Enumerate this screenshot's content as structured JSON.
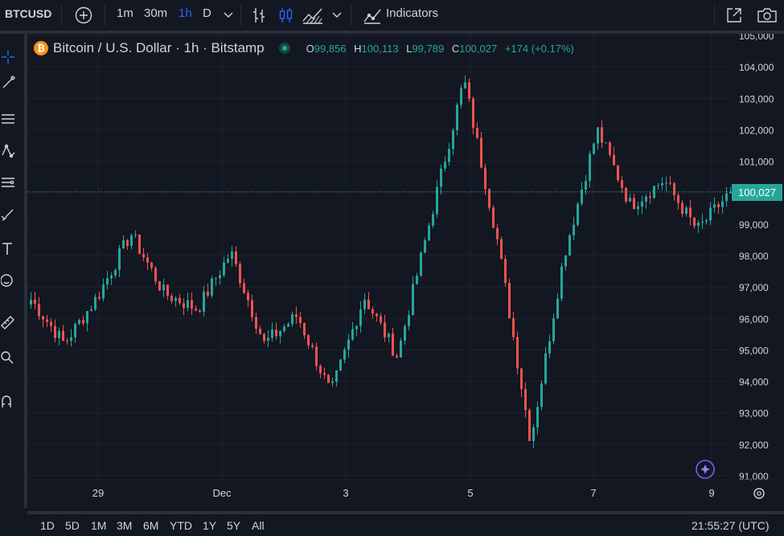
{
  "toolbar": {
    "symbol": "BTCUSD",
    "intervals": [
      "1m",
      "30m",
      "1h",
      "D"
    ],
    "active_interval": "1h",
    "indicators_label": "Indicators"
  },
  "legend": {
    "title": "Bitcoin / U.S. Dollar · 1h · Bitstamp",
    "coin_glyph": "₿",
    "open_label": "O",
    "open": "99,856",
    "high_label": "H",
    "high": "100,113",
    "low_label": "L",
    "low": "99,789",
    "close_label": "C",
    "close": "100,027",
    "change": "+174 (+0.17%)"
  },
  "price_axis": {
    "ticks": [
      "105,000",
      "104,000",
      "103,000",
      "102,000",
      "101,000",
      "100,000",
      "99,000",
      "98,000",
      "97,000",
      "96,000",
      "95,000",
      "94,000",
      "93,000",
      "92,000",
      "91,000"
    ],
    "last_price": "100,027"
  },
  "time_axis": {
    "labels": [
      "29",
      "Dec",
      "3",
      "5",
      "7",
      "9"
    ]
  },
  "bottom_bar": {
    "ranges": [
      "1D",
      "5D",
      "1M",
      "3M",
      "6M",
      "YTD",
      "1Y",
      "5Y",
      "All"
    ],
    "clock": "21:55:27 (UTC)"
  },
  "colors": {
    "background": "#131722",
    "up": "#26a69a",
    "down": "#ef5350",
    "grid": "#1e222d",
    "accent": "#2962ff"
  },
  "icons": {
    "left_toolbar": [
      "crosshair-icon",
      "trend-line-icon",
      "fib-retracement-icon",
      "pattern-icon",
      "prediction-icon",
      "brush-icon",
      "text-icon",
      "emoji-icon",
      "ruler-icon",
      "zoom-icon",
      "magnet-icon"
    ],
    "top_toolbar": [
      "add-symbol-icon",
      "bar-style-icon",
      "candle-style-icon",
      "area-style-icon",
      "chevron-down-icon",
      "indicators-icon",
      "fullscreen-icon",
      "camera-icon"
    ]
  },
  "chart_data": {
    "type": "candlestick",
    "series": [
      {
        "name": "Bitcoin / U.S. Dollar · 1h · Bitstamp"
      }
    ],
    "x_labels": [
      "29",
      "Dec",
      "3",
      "5",
      "7",
      "9"
    ],
    "ylim": [
      91000,
      105000
    ],
    "y_ticks": [
      105000,
      104000,
      103000,
      102000,
      101000,
      100000,
      99000,
      98000,
      97000,
      96000,
      95000,
      94000,
      93000,
      92000,
      91000
    ],
    "last_price": 100027,
    "key_points": [
      {
        "time": "28 Nov start",
        "price": 96600
      },
      {
        "time": "28 Nov",
        "price": 95200
      },
      {
        "time": "29 Nov",
        "price": 96700
      },
      {
        "time": "29 Nov peak",
        "price": 98700
      },
      {
        "time": "30 Nov",
        "price": 96800
      },
      {
        "time": "Dec 1",
        "price": 96300
      },
      {
        "time": "Dec 2 peak",
        "price": 98100
      },
      {
        "time": "Dec 2",
        "price": 95200
      },
      {
        "time": "Dec 3",
        "price": 96100
      },
      {
        "time": "Dec 3 low",
        "price": 93600
      },
      {
        "time": "Dec 4",
        "price": 96700
      },
      {
        "time": "Dec 4 dip",
        "price": 94800
      },
      {
        "time": "Dec 5 rally",
        "price": 99200
      },
      {
        "time": "Dec 5 high",
        "price": 103600
      },
      {
        "time": "Dec 6 drop",
        "price": 98500
      },
      {
        "time": "Dec 6 wick low",
        "price": 92100
      },
      {
        "time": "Dec 6 recovery",
        "price": 98000
      },
      {
        "time": "Dec 7 high",
        "price": 102000
      },
      {
        "time": "Dec 7",
        "price": 99600
      },
      {
        "time": "Dec 8",
        "price": 100400
      },
      {
        "time": "Dec 8 low",
        "price": 98800
      },
      {
        "time": "Dec 9 last",
        "price": 100027
      }
    ]
  }
}
